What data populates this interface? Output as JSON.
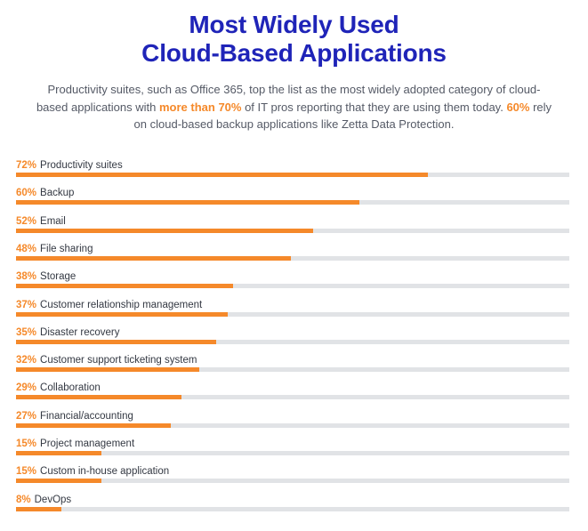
{
  "header": {
    "title_line1": "Most Widely Used",
    "title_line2": "Cloud-Based Applications",
    "subtitle_part1": "Productivity suites, such as Office 365, top the list as the most widely adopted category of cloud-based applications with ",
    "subtitle_highlight1": "more than 70%",
    "subtitle_part2": " of IT pros reporting that they are using them today. ",
    "subtitle_highlight2": "60%",
    "subtitle_part3": " rely on cloud-based backup applications like Zetta Data Protection."
  },
  "colors": {
    "title": "#1f24b8",
    "accent": "#f5892a",
    "track": "#e1e3e6",
    "text": "#333842"
  },
  "chart_data": {
    "type": "bar",
    "orientation": "horizontal",
    "unit": "%",
    "xlim": [
      0,
      100
    ],
    "categories": [
      "Productivity suites",
      "Backup",
      "Email",
      "File sharing",
      "Storage",
      "Customer relationship management",
      "Disaster recovery",
      "Customer support ticketing system",
      "Collaboration",
      "Financial/accounting",
      "Project management",
      "Custom in-house application",
      "DevOps"
    ],
    "values": [
      72,
      60,
      52,
      48,
      38,
      37,
      35,
      32,
      29,
      27,
      15,
      15,
      8
    ],
    "value_labels": [
      "72%",
      "60%",
      "52%",
      "48%",
      "38%",
      "37%",
      "35%",
      "32%",
      "29%",
      "27%",
      "15%",
      "15%",
      "8%"
    ]
  }
}
